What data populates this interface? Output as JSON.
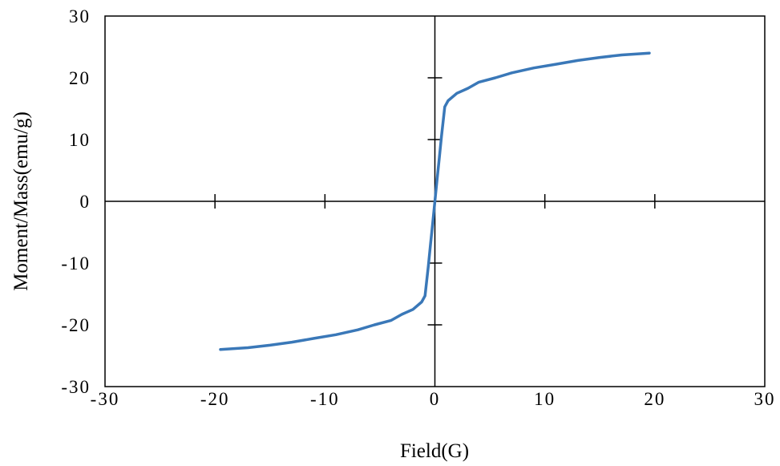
{
  "chart_data": {
    "type": "line",
    "xlabel": "Field(G)",
    "ylabel": "Moment/Mass(emu/g)",
    "xlim": [
      -30,
      30
    ],
    "ylim": [
      -30,
      30
    ],
    "x_ticks": [
      "-30",
      "-20",
      "-10",
      "0",
      "10",
      "20",
      "30"
    ],
    "y_ticks": [
      "30",
      "20",
      "10",
      "0",
      "-10",
      "-20",
      "-30"
    ],
    "grid": false,
    "legend": "none",
    "series_color": "#3a78b8",
    "series": [
      {
        "x": [
          -19.5,
          -17,
          -15,
          -13,
          -11,
          -9,
          -7,
          -5.5,
          -4,
          -3,
          -2,
          -1.2,
          -0.9,
          -0.6,
          -0.4,
          -0.2,
          0,
          0.2,
          0.4,
          0.6,
          0.9,
          1.2,
          2,
          3,
          4,
          5.5,
          7,
          9,
          11,
          13,
          15,
          17,
          19.5
        ],
        "y": [
          -24.0,
          -23.7,
          -23.3,
          -22.8,
          -22.2,
          -21.6,
          -20.8,
          -20.0,
          -19.3,
          -18.3,
          -17.5,
          -16.3,
          -15.3,
          -10.5,
          -7.0,
          -3.5,
          0,
          3.5,
          7.0,
          10.5,
          15.3,
          16.3,
          17.5,
          18.3,
          19.3,
          20.0,
          20.8,
          21.6,
          22.2,
          22.8,
          23.3,
          23.7,
          24.0
        ]
      }
    ]
  }
}
